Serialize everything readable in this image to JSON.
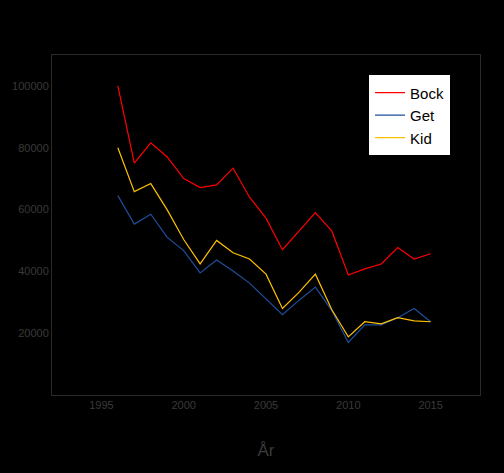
{
  "chart_data": {
    "type": "line",
    "x_label": "År",
    "x": [
      1996,
      1997,
      1998,
      1999,
      2000,
      2001,
      2002,
      2003,
      2004,
      2005,
      2006,
      2007,
      2008,
      2009,
      2010,
      2011,
      2012,
      2013,
      2014,
      2015
    ],
    "series": [
      {
        "name": "Bock",
        "color": "#ff0000",
        "values": [
          100000,
          75000,
          81600,
          77000,
          70000,
          67100,
          68000,
          73400,
          64000,
          57200,
          47000,
          53000,
          59000,
          53000,
          38800,
          40800,
          42400,
          47700,
          44000,
          45700
        ]
      },
      {
        "name": "Get",
        "color": "#1f4e9c",
        "values": [
          64500,
          55300,
          58500,
          51000,
          46700,
          39500,
          43700,
          40100,
          36200,
          31200,
          26000,
          30600,
          34900,
          27300,
          17000,
          22700,
          22700,
          25000,
          28000,
          23700
        ]
      },
      {
        "name": "Kid",
        "color": "#ffc000",
        "values": [
          80000,
          65800,
          68400,
          59900,
          50300,
          42400,
          50000,
          46000,
          44000,
          39100,
          28000,
          33200,
          39100,
          27600,
          18800,
          23700,
          23000,
          25000,
          24000,
          23700
        ]
      }
    ],
    "xlim": [
      1992,
      2018
    ],
    "xticks": [
      1995,
      2000,
      2005,
      2010,
      2015
    ],
    "ylim": [
      0,
      110000
    ],
    "yticks": [
      20000,
      40000,
      60000,
      80000,
      100000
    ],
    "grid": false,
    "legend": "top right"
  }
}
